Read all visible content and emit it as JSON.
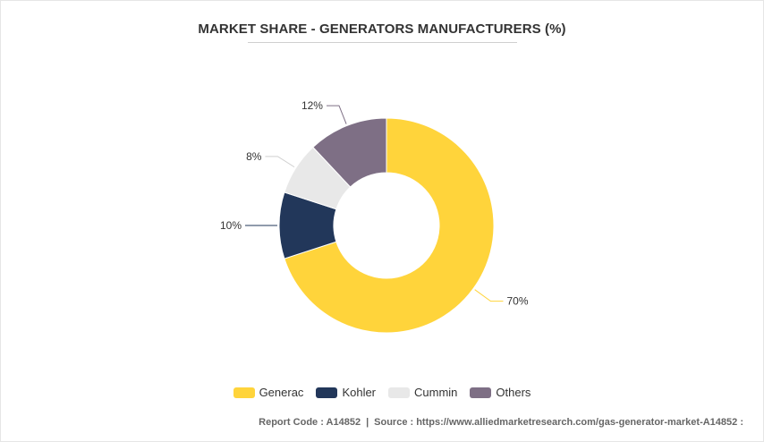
{
  "chart_data": {
    "type": "pie",
    "title": "MARKET SHARE - GENERATORS MANUFACTURERS (%)",
    "donut": true,
    "categories": [
      "Generac",
      "Kohler",
      "Cummin",
      "Others"
    ],
    "values": [
      70,
      10,
      8,
      12
    ],
    "labels": [
      "70%",
      "10%",
      "8%",
      "12%"
    ],
    "colors": [
      "#FFD43B",
      "#22375A",
      "#E8E8E8",
      "#7E6F85"
    ],
    "legend_position": "bottom"
  },
  "footer": {
    "report_code": "Report Code : A14852",
    "separator": "|",
    "source": "Source : https://www.alliedmarketresearch.com/gas-generator-market-A14852 :"
  }
}
